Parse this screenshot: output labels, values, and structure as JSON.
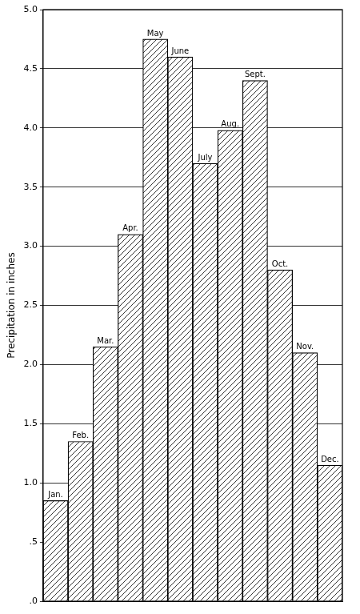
{
  "chart_data": {
    "type": "bar",
    "y_label": "Precipitation in inches",
    "categories": [
      "Jan.",
      "Feb.",
      "Mar.",
      "Apr.",
      "May",
      "June",
      "July",
      "Aug.",
      "Sept.",
      "Oct.",
      "Nov.",
      "Dec."
    ],
    "values": [
      0.85,
      1.35,
      2.15,
      3.1,
      4.75,
      4.6,
      3.7,
      3.98,
      4.4,
      2.8,
      2.1,
      1.15
    ],
    "color": "#000000",
    "ylim": [
      0,
      5
    ],
    "yticks": [
      {
        "value": 0,
        "label": ".0"
      },
      {
        "value": 0.5,
        "label": ".5"
      },
      {
        "value": 1,
        "label": "1.0"
      },
      {
        "value": 1.5,
        "label": "1.5"
      },
      {
        "value": 2,
        "label": "2.0"
      },
      {
        "value": 2.5,
        "label": "2.5"
      },
      {
        "value": 3,
        "label": "3.0"
      },
      {
        "value": 3.5,
        "label": "3.5"
      },
      {
        "value": 4,
        "label": "4.0"
      },
      {
        "value": 4.5,
        "label": "4.5"
      },
      {
        "value": 5,
        "label": "5.0"
      }
    ],
    "grid": true,
    "tick_labels": "y"
  }
}
